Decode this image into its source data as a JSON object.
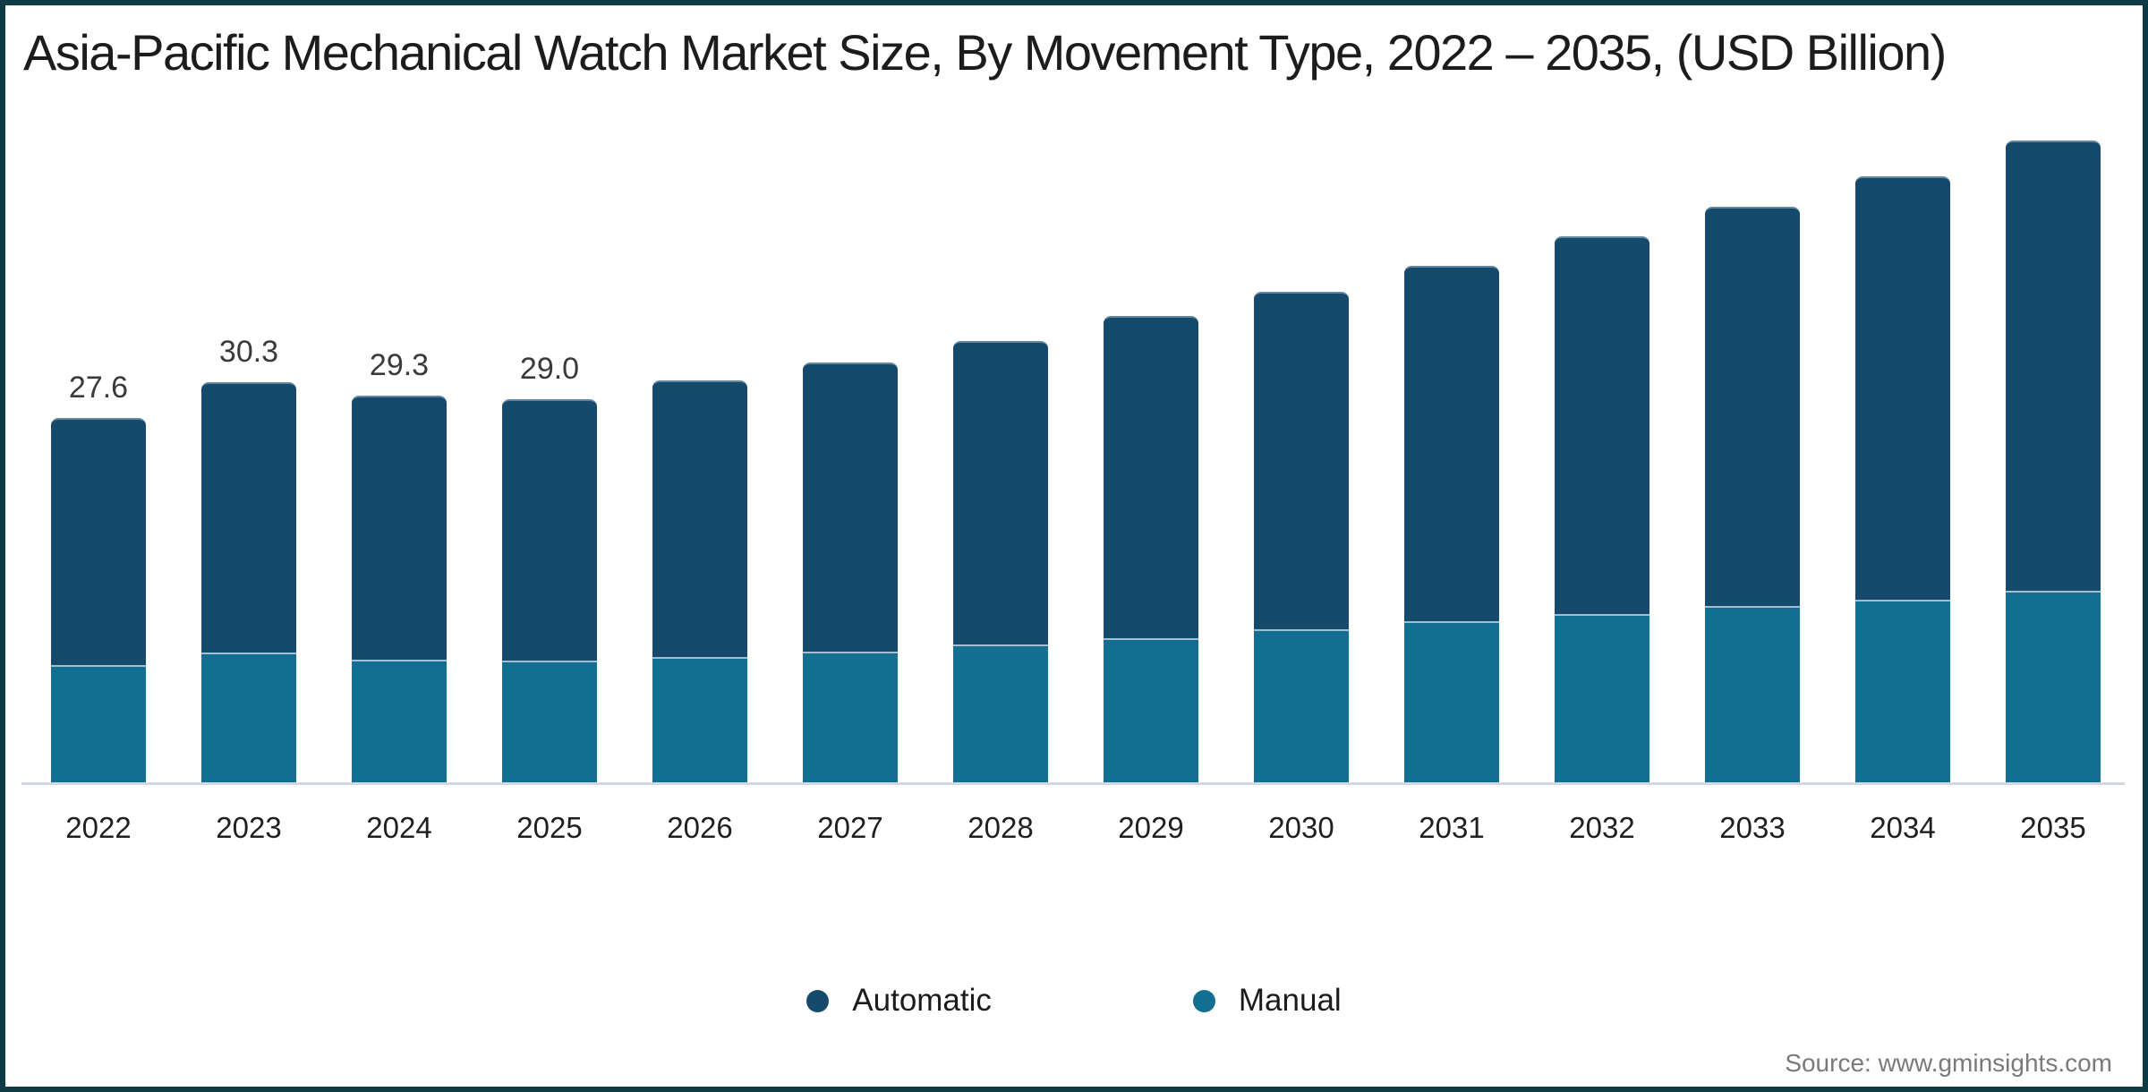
{
  "title": "Asia-Pacific Mechanical Watch Market Size, By Movement Type, 2022 – 2035, (USD Billion)",
  "source_note": "Source: www.gminsights.com",
  "colors": {
    "frame_border": "#0D3A44",
    "automatic": "#164A6C",
    "manual": "#126F91",
    "segment_separator": "#A3BDD1",
    "axis_line": "#D4D8E5",
    "value_label": "#3a3a3a"
  },
  "legend": {
    "items": [
      {
        "label": "Automatic",
        "color": "#164A6C"
      },
      {
        "label": "Manual",
        "color": "#126F91"
      }
    ]
  },
  "chart_data": {
    "type": "bar",
    "stacked": true,
    "title": "Asia-Pacific Mechanical Watch Market Size, By Movement Type, 2022 – 2035, (USD Billion)",
    "xlabel": "",
    "ylabel": "USD Billion",
    "grid": false,
    "legend_position": "bottom",
    "categories": [
      "2022",
      "2023",
      "2024",
      "2025",
      "2026",
      "2027",
      "2028",
      "2029",
      "2030",
      "2031",
      "2032",
      "2033",
      "2034",
      "2035"
    ],
    "series": [
      {
        "name": "Automatic",
        "color": "#164A6C",
        "values": [
          18.6,
          20.4,
          19.9,
          19.7,
          20.8,
          21.8,
          22.9,
          24.3,
          25.4,
          26.8,
          28.5,
          30.1,
          31.9,
          33.9
        ]
      },
      {
        "name": "Manual",
        "color": "#126F91",
        "values": [
          9.0,
          9.9,
          9.4,
          9.3,
          9.6,
          10.0,
          10.5,
          11.0,
          11.7,
          12.3,
          12.8,
          13.4,
          13.9,
          14.6
        ]
      }
    ],
    "totals": [
      27.6,
      30.3,
      29.3,
      29.0,
      30.4,
      31.8,
      33.4,
      35.3,
      37.1,
      39.1,
      41.3,
      43.5,
      45.8,
      48.5
    ],
    "data_labels": [
      "27.6",
      "30.3",
      "29.3",
      "29.0",
      "",
      "",
      "",
      "",
      "",
      "",
      "",
      "",
      "",
      ""
    ]
  }
}
